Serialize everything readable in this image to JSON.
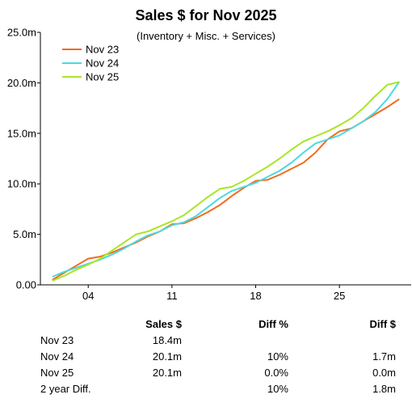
{
  "chart_data": {
    "type": "line",
    "title": "Sales $ for Nov 2025",
    "subtitle": "(Inventory + Misc. + Services)",
    "xlabel": "",
    "ylabel": "",
    "x_day": [
      1,
      2,
      3,
      4,
      5,
      6,
      7,
      8,
      9,
      10,
      11,
      12,
      13,
      14,
      15,
      16,
      17,
      18,
      19,
      20,
      21,
      22,
      23,
      24,
      25,
      26,
      27,
      28,
      29,
      30
    ],
    "x_ticks": [
      4,
      11,
      18,
      25
    ],
    "x_tick_labels": [
      "04",
      "11",
      "18",
      "25"
    ],
    "xlim": [
      0,
      31
    ],
    "y_ticks": [
      0,
      5,
      10,
      15,
      20,
      25
    ],
    "y_tick_labels": [
      "0.00",
      "5.0m",
      "10.0m",
      "15.0m",
      "20.0m",
      "25.0m"
    ],
    "ylim": [
      0,
      25
    ],
    "grid": false,
    "legend_placement": "top-left",
    "series": [
      {
        "name": "Nov 23",
        "color": "#f26b1d",
        "values": [
          0.5,
          1.2,
          1.9,
          2.6,
          2.8,
          3.2,
          3.7,
          4.2,
          4.8,
          5.3,
          6.0,
          6.1,
          6.6,
          7.2,
          7.9,
          8.8,
          9.6,
          10.3,
          10.4,
          10.9,
          11.5,
          12.1,
          13.1,
          14.4,
          15.2,
          15.5,
          16.2,
          16.9,
          17.6,
          18.4
        ]
      },
      {
        "name": "Nov 24",
        "color": "#4dd9df",
        "values": [
          0.8,
          1.3,
          1.7,
          2.1,
          2.5,
          3.0,
          3.6,
          4.3,
          4.9,
          5.3,
          5.9,
          6.2,
          6.8,
          7.7,
          8.6,
          9.3,
          9.7,
          10.1,
          10.7,
          11.3,
          12.1,
          13.1,
          14.0,
          14.4,
          14.8,
          15.5,
          16.2,
          17.1,
          18.4,
          20.1
        ]
      },
      {
        "name": "Nov 25",
        "color": "#a8e626",
        "values": [
          0.4,
          0.9,
          1.5,
          2.0,
          2.6,
          3.4,
          4.2,
          5.0,
          5.3,
          5.8,
          6.3,
          6.9,
          7.8,
          8.7,
          9.5,
          9.7,
          10.3,
          11.0,
          11.7,
          12.5,
          13.4,
          14.2,
          14.7,
          15.2,
          15.8,
          16.5,
          17.5,
          18.7,
          19.8,
          20.1
        ]
      }
    ],
    "axis_color": "#000000"
  },
  "table": {
    "headers": {
      "name": "",
      "sales": "Sales $",
      "diff_pct": "Diff %",
      "diff_dollar": "Diff $"
    },
    "rows": [
      {
        "name": "Nov 23",
        "sales": "18.4m",
        "diff_pct": "",
        "diff_dollar": ""
      },
      {
        "name": "Nov 24",
        "sales": "20.1m",
        "diff_pct": "10%",
        "diff_dollar": "1.7m"
      },
      {
        "name": "Nov 25",
        "sales": "20.1m",
        "diff_pct": "0.0%",
        "diff_dollar": "0.0m"
      },
      {
        "name": "2 year Diff.",
        "sales": "",
        "diff_pct": "10%",
        "diff_dollar": "1.8m"
      }
    ]
  }
}
